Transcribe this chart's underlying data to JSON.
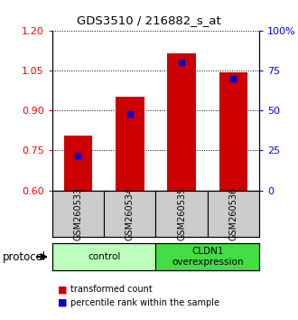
{
  "title": "GDS3510 / 216882_s_at",
  "samples": [
    "GSM260533",
    "GSM260534",
    "GSM260535",
    "GSM260536"
  ],
  "transformed_counts": [
    0.806,
    0.952,
    1.115,
    1.042
  ],
  "percentile_ranks": [
    22,
    48,
    80,
    70
  ],
  "ylim_left": [
    0.6,
    1.2
  ],
  "ylim_right": [
    0,
    100
  ],
  "yticks_left": [
    0.6,
    0.75,
    0.9,
    1.05,
    1.2
  ],
  "yticks_right": [
    0,
    25,
    50,
    75,
    100
  ],
  "ytick_labels_right": [
    "0",
    "25",
    "50",
    "75",
    "100%"
  ],
  "bar_color": "#cc0000",
  "dot_color": "#0000cc",
  "groups": [
    {
      "label": "control",
      "samples": [
        0,
        1
      ],
      "color": "#bbffbb"
    },
    {
      "label": "CLDN1\noverexpression",
      "samples": [
        2,
        3
      ],
      "color": "#44dd44"
    }
  ],
  "protocol_label": "protocol",
  "legend_bar_label": "transformed count",
  "legend_dot_label": "percentile rank within the sample",
  "bg_color_sample": "#cccccc",
  "bar_width": 0.55
}
